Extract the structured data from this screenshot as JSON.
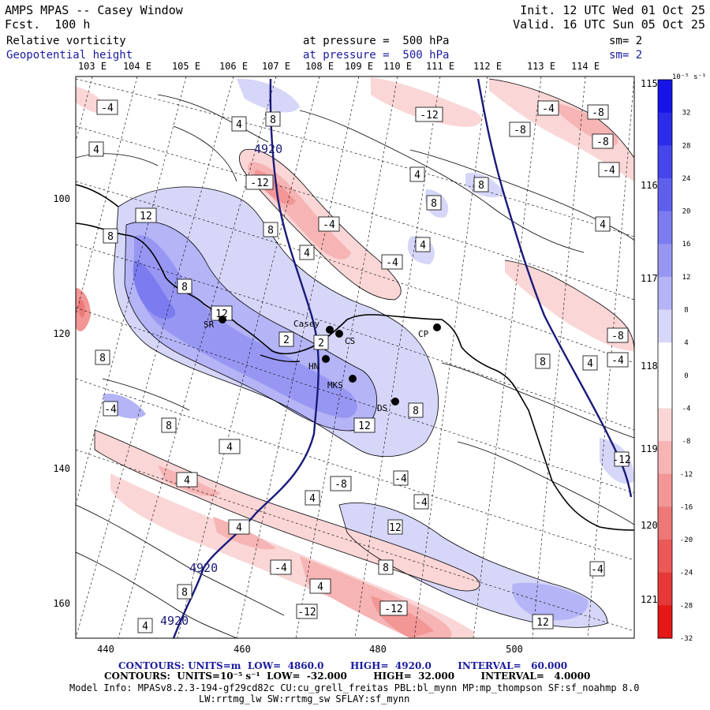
{
  "header": {
    "model": "AMPS MPAS -- Casey Window",
    "forecast": "Fcst.  100 h",
    "init": "Init. 12 UTC Wed 01 Oct 25",
    "valid": "Valid. 16 UTC Sun 05 Oct 25"
  },
  "fields": [
    {
      "name": "Relative vorticity",
      "level": "at pressure =  500 hPa",
      "smooth": "sm= 2"
    },
    {
      "name": "Geopotential height",
      "level": "at pressure =  500 hPa",
      "smooth": "sm= 2"
    }
  ],
  "lon_top": [
    "103 E",
    "104 E",
    "105 E",
    "106 E",
    "107 E",
    "108 E",
    "109 E",
    "110 E",
    "111 E",
    "112 E",
    "113 E",
    "114 E",
    "115 E"
  ],
  "lon_right": [
    "116 E",
    "117 E",
    "118 E",
    "119 E",
    "120 E",
    "121 E"
  ],
  "x_ticks": [
    "440",
    "460",
    "480",
    "500"
  ],
  "y_ticks": [
    "100",
    "120",
    "140",
    "160"
  ],
  "colorbar": {
    "unit": "10⁻⁵ s⁻¹",
    "labels": [
      "32",
      "28",
      "24",
      "20",
      "16",
      "12",
      "8",
      "4",
      "0",
      "-4",
      "-8",
      "-12",
      "-16",
      "-20",
      "-24",
      "-28",
      "-32"
    ],
    "colors": [
      "#1515e8",
      "#2b2bea",
      "#4646ec",
      "#5f5fee",
      "#7c7cf0",
      "#9797f3",
      "#b4b4f6",
      "#d6d6f9",
      "#ffffff",
      "#ffffff",
      "#fad6d6",
      "#f6b4b4",
      "#f29696",
      "#ee7777",
      "#ea5858",
      "#e63838",
      "#e51818"
    ]
  },
  "stations": [
    {
      "label": "SR"
    },
    {
      "label": "Casey"
    },
    {
      "label": "CS"
    },
    {
      "label": "HN"
    },
    {
      "label": "MKS"
    },
    {
      "label": "DS"
    },
    {
      "label": "CP"
    }
  ],
  "height_labels": [
    "4920",
    "4920",
    "4920"
  ],
  "vort_labels": [
    "-4",
    "8",
    "4",
    "-12",
    "-4",
    "-8",
    "-8",
    "4",
    "-4",
    "12",
    "8",
    "-12",
    "4",
    "8",
    "-8",
    "4",
    "8",
    "-4",
    "4",
    "8",
    "4",
    "8",
    "12",
    "2",
    "2",
    "12",
    "-8",
    "-4",
    "8",
    "4",
    "-4",
    "8",
    "4",
    "-4",
    "8",
    "4",
    "8",
    "-4",
    "-8",
    "4",
    "-4",
    "-12",
    "4",
    "12",
    "-4",
    "8",
    "-4",
    "4",
    "8",
    "4"
  ],
  "footer": {
    "line1": "CONTOURS: UNITS=m  LOW=  4860.0        HIGH=  4920.0        INTERVAL=   60.000",
    "line2": "CONTOURS:  UNITS=10⁻⁵ s⁻¹  LOW=  -32.000        HIGH=  32.000        INTERVAL=   4.0000",
    "line3": "Model Info: MPASv8.2.3-194-gf29cd82c CU:cu_grell_freitas PBL:bl_mynn MP:mp_thompson SF:sf_noahmp 8.0",
    "line4": "LW:rrtmg_lw SW:rrtmg_sw SFLAY:sf_mynn"
  }
}
